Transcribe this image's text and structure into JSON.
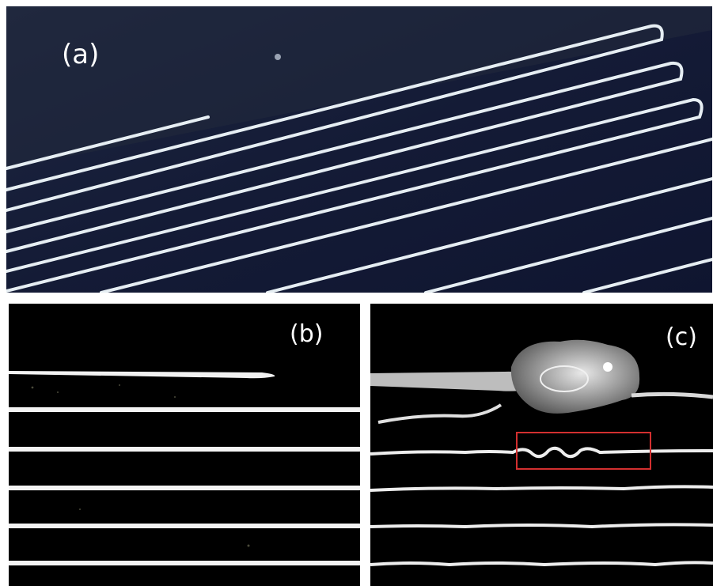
{
  "panels": {
    "a": {
      "label": "(a)",
      "description_icon": "serpentine-printed-lines-photo"
    },
    "b": {
      "label": "(b)",
      "description_icon": "straight-printed-lines-photo"
    },
    "c": {
      "label": "(c)",
      "description_icon": "wavy-printed-lines-with-droplet-photo"
    }
  },
  "colors": {
    "panel_a_background": "#141a33",
    "line_color": "#e8f0f4",
    "panel_bc_background": "#000000",
    "highlight_box": "#d32f2f"
  }
}
